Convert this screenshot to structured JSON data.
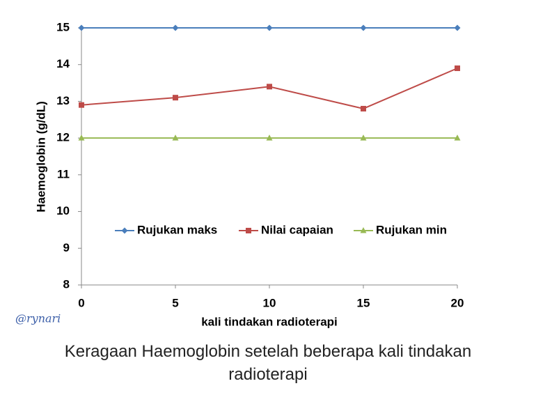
{
  "chart_data": {
    "type": "line",
    "x_label": "kali tindakan radioterapi",
    "y_label": "Haemoglobin (g/dL)",
    "caption": "Keragaan Haemoglobin setelah beberapa kali tindakan radioterapi",
    "watermark": "@rynari",
    "x": [
      0,
      5,
      10,
      15,
      20
    ],
    "xlim": [
      0,
      20
    ],
    "xticks": [
      0,
      5,
      10,
      15,
      20
    ],
    "ylim": [
      8,
      15
    ],
    "yticks": [
      8,
      9,
      10,
      11,
      12,
      13,
      14,
      15
    ],
    "series": [
      {
        "name": "Rujukan maks",
        "color": "#4a7ebb",
        "marker": "diamond",
        "values": [
          15,
          15,
          15,
          15,
          15
        ]
      },
      {
        "name": "Nilai capaian",
        "color": "#be4b48",
        "marker": "square",
        "values": [
          12.9,
          13.1,
          13.4,
          12.8,
          13.9
        ]
      },
      {
        "name": "Rujukan min",
        "color": "#98b954",
        "marker": "triangle",
        "values": [
          12,
          12,
          12,
          12,
          12
        ]
      }
    ]
  }
}
